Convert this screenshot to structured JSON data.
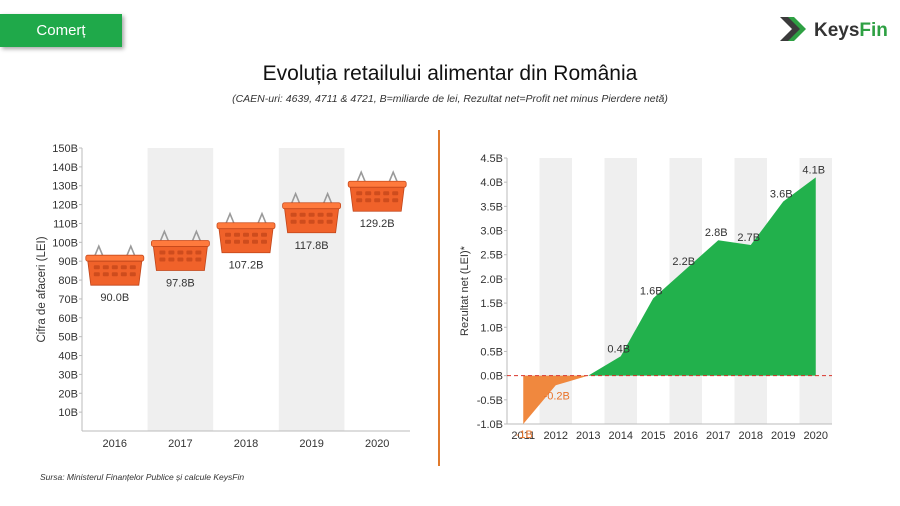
{
  "header": {
    "tag_label": "Comerț",
    "logo_text_a": "Keys",
    "logo_text_b": "Fin",
    "title": "Evoluția retailului alimentar din România",
    "subtitle": "(CAEN-uri: 4639, 4711 & 4721, B=miliarde de lei, Rezultat net=Profit net minus Pierdere netă)"
  },
  "footer": {
    "source": "Sursa: Ministerul Finanțelor Publice și calcule KeysFin"
  },
  "colors": {
    "accent_green": "#1fa94a",
    "area_green": "#22b14c",
    "area_orange": "#f0883e",
    "basket_orange": "#f0622a",
    "band_gray": "#efefef",
    "divider": "#e07a2c",
    "zero_line": "#d9342b"
  },
  "chart_data": [
    {
      "type": "bar",
      "marker": "basket-icon",
      "categories": [
        "2016",
        "2017",
        "2018",
        "2019",
        "2020"
      ],
      "values": [
        90.0,
        97.8,
        107.2,
        117.8,
        129.2
      ],
      "data_labels": [
        "90.0B",
        "97.8B",
        "107.2B",
        "117.8B",
        "129.2B"
      ],
      "ylabel": "Cifra de afaceri (LEI)",
      "ylim": [
        0,
        150
      ],
      "yticks": [
        10,
        20,
        30,
        40,
        50,
        60,
        70,
        80,
        90,
        100,
        110,
        120,
        130,
        140,
        150
      ],
      "ytick_labels": [
        "10B",
        "20B",
        "30B",
        "40B",
        "50B",
        "60B",
        "70B",
        "80B",
        "90B",
        "100B",
        "110B",
        "120B",
        "130B",
        "140B",
        "150B"
      ],
      "grid": "alternating-column-bands"
    },
    {
      "type": "area",
      "categories": [
        "2011",
        "2012",
        "2013",
        "2014",
        "2015",
        "2016",
        "2017",
        "2018",
        "2019",
        "2020"
      ],
      "values": [
        -1.0,
        -0.2,
        0.0,
        0.4,
        1.6,
        2.2,
        2.8,
        2.7,
        3.6,
        4.1
      ],
      "data_labels": [
        "-1B",
        "-0.2B",
        "",
        "0.4B",
        "1.6B",
        "2.2B",
        "2.8B",
        "2.7B",
        "3.6B",
        "4.1B"
      ],
      "ylabel": "Rezultat net (LEI)*",
      "ylim": [
        -1.0,
        4.5
      ],
      "yticks": [
        -1.0,
        -0.5,
        0.0,
        0.5,
        1.0,
        1.5,
        2.0,
        2.5,
        3.0,
        3.5,
        4.0,
        4.5
      ],
      "ytick_labels": [
        "-1.0B",
        "-0.5B",
        "0.0B",
        "0.5B",
        "1.0B",
        "1.5B",
        "2.0B",
        "2.5B",
        "3.0B",
        "3.5B",
        "4.0B",
        "4.5B"
      ],
      "zero_line": "dashed",
      "grid": "alternating-column-bands"
    }
  ]
}
